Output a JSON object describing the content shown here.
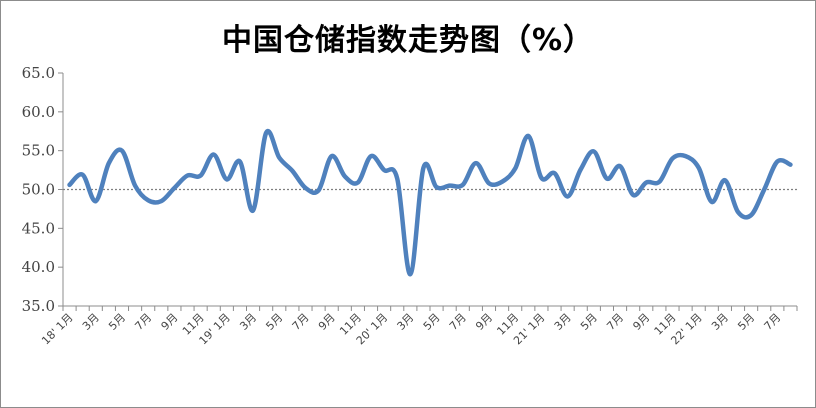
{
  "chart_data": {
    "type": "line",
    "title": "中国仓储指数走势图（%）",
    "xlabel": "",
    "ylabel": "",
    "ylim": [
      35,
      65
    ],
    "yticks": [
      "65.0",
      "60.0",
      "55.0",
      "50.0",
      "45.0",
      "40.0",
      "35.0"
    ],
    "reference_line": 50,
    "line_color": "#4f81bd",
    "x_tick_labels": [
      "18' 1月",
      "3月",
      "5月",
      "7月",
      "9月",
      "11月",
      "19' 1月",
      "3月",
      "5月",
      "7月",
      "9月",
      "11月",
      "20' 1月",
      "3月",
      "5月",
      "7月",
      "9月",
      "11月",
      "21' 1月",
      "3月",
      "5月",
      "7月",
      "9月",
      "11月",
      "22' 1月",
      "3月",
      "5月",
      "7月"
    ],
    "series": [
      {
        "values": [
          50.6,
          51.9,
          48.5,
          53.4,
          55.0,
          50.5,
          48.6,
          48.5,
          50.2,
          51.8,
          51.8,
          54.5,
          51.3,
          53.6,
          47.3,
          57.3,
          54.1,
          52.4,
          50.2,
          49.9,
          54.3,
          51.7,
          50.9,
          54.3,
          52.5,
          51.4,
          39.1,
          52.8,
          50.3,
          50.5,
          50.6,
          53.4,
          50.8,
          51.0,
          52.7,
          56.9,
          51.5,
          52.1,
          49.1,
          52.6,
          54.9,
          51.4,
          53.0,
          49.3,
          50.9,
          51.0,
          54.0,
          54.3,
          52.8,
          48.4,
          51.2,
          47.1,
          46.7,
          50.0,
          53.6,
          53.2
        ]
      }
    ]
  }
}
